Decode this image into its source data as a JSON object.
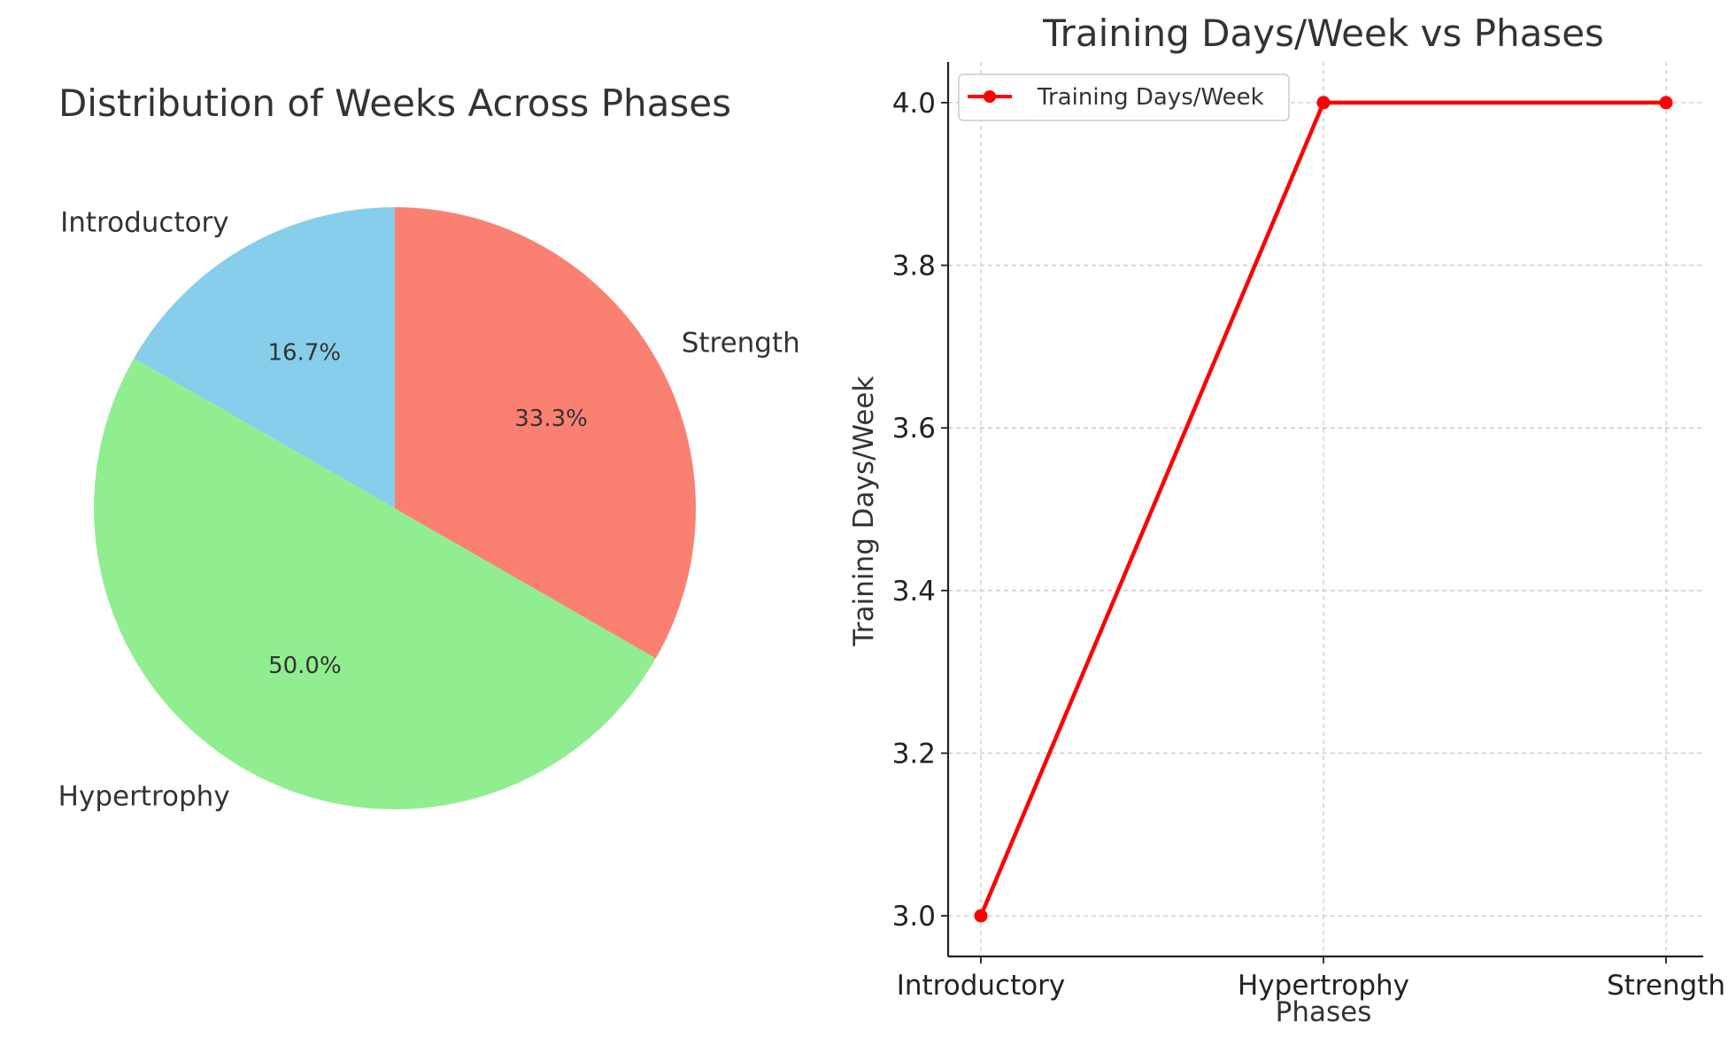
{
  "chart_data": [
    {
      "type": "pie",
      "title": "Distribution of Weeks Across Phases",
      "labels": [
        "Introductory",
        "Hypertrophy",
        "Strength"
      ],
      "values": [
        16.7,
        50.0,
        33.3
      ],
      "autopct_labels": [
        "16.7%",
        "50.0%",
        "33.3%"
      ],
      "colors": [
        "#87CEEB",
        "#90EE90",
        "#FA8072"
      ],
      "start_angle": 90,
      "direction": "counterclockwise"
    },
    {
      "type": "line",
      "title": "Training Days/Week vs Phases",
      "xlabel": "Phases",
      "ylabel": "Training Days/Week",
      "categories": [
        "Introductory",
        "Hypertrophy",
        "Strength"
      ],
      "series": [
        {
          "name": "Training Days/Week",
          "values": [
            3,
            4,
            4
          ],
          "color": "#FF0000",
          "marker": "circle"
        }
      ],
      "ylim": [
        2.95,
        4.05
      ],
      "yticks": [
        3.0,
        3.2,
        3.4,
        3.6,
        3.8,
        4.0
      ],
      "ytick_labels": [
        "3.0",
        "3.2",
        "3.4",
        "3.6",
        "3.8",
        "4.0"
      ],
      "grid": true,
      "legend_position": "top-left"
    }
  ]
}
